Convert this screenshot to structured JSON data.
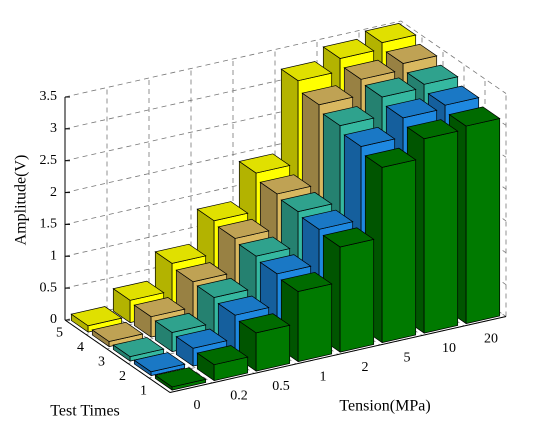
{
  "chart_data": {
    "type": "bar3d",
    "x_label": "Tension(MPa)",
    "y_label": "Test Times",
    "z_label": "Amplitude(V)",
    "categories": [
      "0",
      "0.2",
      "0.5",
      "1",
      "2",
      "5",
      "10",
      "20"
    ],
    "series": [
      {
        "name": "1",
        "color": "#007a00",
        "values": [
          0.05,
          0.25,
          0.6,
          1.1,
          1.65,
          2.75,
          3.05,
          3.1
        ]
      },
      {
        "name": "2",
        "color": "#1e88e0",
        "values": [
          0.06,
          0.28,
          0.65,
          1.15,
          1.7,
          2.85,
          3.15,
          3.2
        ]
      },
      {
        "name": "3",
        "color": "#35b8a0",
        "values": [
          0.07,
          0.3,
          0.7,
          1.2,
          1.75,
          2.95,
          3.25,
          3.3
        ]
      },
      {
        "name": "4",
        "color": "#d9b860",
        "values": [
          0.08,
          0.32,
          0.72,
          1.25,
          1.8,
          3.05,
          3.3,
          3.4
        ]
      },
      {
        "name": "5",
        "color": "#ffff00",
        "values": [
          0.1,
          0.35,
          0.78,
          1.3,
          1.9,
          3.2,
          3.4,
          3.5
        ]
      }
    ],
    "zlim": [
      0,
      3.5
    ],
    "zticks": [
      0,
      0.5,
      1,
      1.5,
      2,
      2.5,
      3,
      3.5
    ],
    "grid": true
  }
}
